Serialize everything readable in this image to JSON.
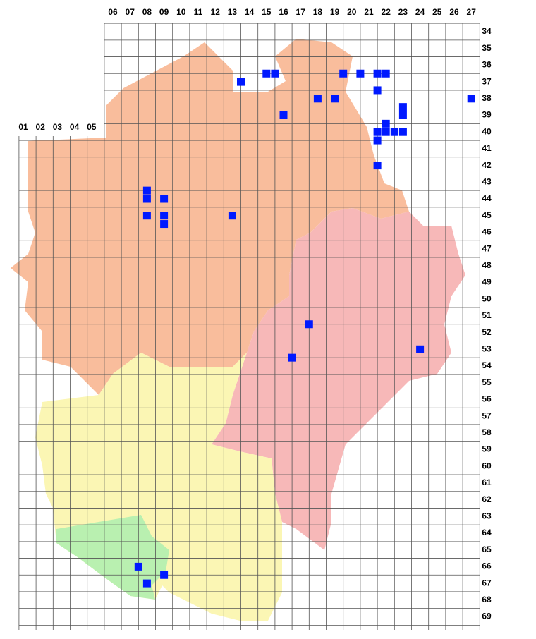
{
  "map": {
    "columns_top": [
      "06",
      "07",
      "08",
      "09",
      "10",
      "11",
      "12",
      "13",
      "14",
      "15",
      "16",
      "17",
      "18",
      "19",
      "20",
      "21",
      "22",
      "23",
      "24",
      "25",
      "26",
      "27"
    ],
    "columns_left": [
      "01",
      "02",
      "03",
      "04",
      "05"
    ],
    "rows": [
      "34",
      "35",
      "36",
      "37",
      "38",
      "39",
      "40",
      "41",
      "42",
      "43",
      "44",
      "45",
      "46",
      "47",
      "48",
      "49",
      "50",
      "51",
      "52",
      "53",
      "54",
      "55",
      "56",
      "57",
      "58",
      "59",
      "60",
      "61",
      "62",
      "63",
      "64",
      "65",
      "66",
      "67",
      "68",
      "69"
    ],
    "records": [
      {
        "col": 15,
        "row": 36.5
      },
      {
        "col": 15.5,
        "row": 36.5
      },
      {
        "col": 13.5,
        "row": 37
      },
      {
        "col": 16,
        "row": 39
      },
      {
        "col": 18,
        "row": 38
      },
      {
        "col": 19,
        "row": 38
      },
      {
        "col": 19.5,
        "row": 36.5
      },
      {
        "col": 20.5,
        "row": 36.5
      },
      {
        "col": 21.5,
        "row": 36.5
      },
      {
        "col": 22,
        "row": 36.5
      },
      {
        "col": 21.5,
        "row": 37.5
      },
      {
        "col": 27,
        "row": 38
      },
      {
        "col": 23,
        "row": 38.5
      },
      {
        "col": 23,
        "row": 39
      },
      {
        "col": 22,
        "row": 39.5
      },
      {
        "col": 21.5,
        "row": 40
      },
      {
        "col": 22,
        "row": 40
      },
      {
        "col": 22.5,
        "row": 40
      },
      {
        "col": 23,
        "row": 40
      },
      {
        "col": 21.5,
        "row": 40.5
      },
      {
        "col": 21.5,
        "row": 42
      },
      {
        "col": 8,
        "row": 43.5
      },
      {
        "col": 8,
        "row": 44
      },
      {
        "col": 9,
        "row": 44
      },
      {
        "col": 8,
        "row": 45
      },
      {
        "col": 9,
        "row": 45
      },
      {
        "col": 9,
        "row": 45.5
      },
      {
        "col": 13,
        "row": 45
      },
      {
        "col": 17.5,
        "row": 51.5
      },
      {
        "col": 24,
        "row": 53
      },
      {
        "col": 16.5,
        "row": 53.5
      },
      {
        "col": 7.5,
        "row": 66
      },
      {
        "col": 9,
        "row": 66.5
      },
      {
        "col": 8,
        "row": 67
      }
    ]
  }
}
